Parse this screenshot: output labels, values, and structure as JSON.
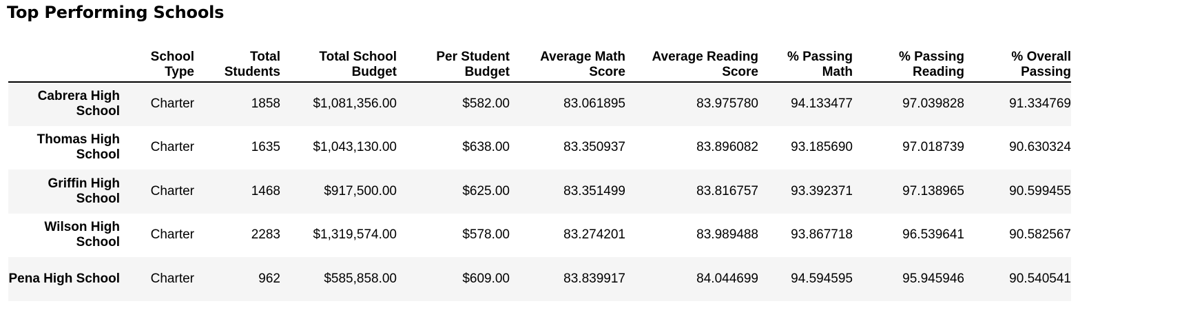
{
  "heading": "Top Performing Schools",
  "table": {
    "columns": [
      "",
      "School Type",
      "Total Students",
      "Total School Budget",
      "Per Student Budget",
      "Average Math Score",
      "Average Reading Score",
      "% Passing Math",
      "% Passing Reading",
      "% Overall Passing"
    ],
    "rows": [
      {
        "school": "Cabrera High School",
        "type": "Charter",
        "students": "1858",
        "budget": "$1,081,356.00",
        "per_student": "$582.00",
        "avg_math": "83.061895",
        "avg_reading": "83.975780",
        "pass_math": "94.133477",
        "pass_reading": "97.039828",
        "overall": "91.334769"
      },
      {
        "school": "Thomas High School",
        "type": "Charter",
        "students": "1635",
        "budget": "$1,043,130.00",
        "per_student": "$638.00",
        "avg_math": "83.350937",
        "avg_reading": "83.896082",
        "pass_math": "93.185690",
        "pass_reading": "97.018739",
        "overall": "90.630324"
      },
      {
        "school": "Griffin High School",
        "type": "Charter",
        "students": "1468",
        "budget": "$917,500.00",
        "per_student": "$625.00",
        "avg_math": "83.351499",
        "avg_reading": "83.816757",
        "pass_math": "93.392371",
        "pass_reading": "97.138965",
        "overall": "90.599455"
      },
      {
        "school": "Wilson High School",
        "type": "Charter",
        "students": "2283",
        "budget": "$1,319,574.00",
        "per_student": "$578.00",
        "avg_math": "83.274201",
        "avg_reading": "83.989488",
        "pass_math": "93.867718",
        "pass_reading": "96.539641",
        "overall": "90.582567"
      },
      {
        "school": "Pena High School",
        "type": "Charter",
        "students": "962",
        "budget": "$585,858.00",
        "per_student": "$609.00",
        "avg_math": "83.839917",
        "avg_reading": "84.044699",
        "pass_math": "94.594595",
        "pass_reading": "95.945946",
        "overall": "90.540541"
      }
    ]
  },
  "colors": {
    "shaded_row": "#f5f5f5",
    "header_rule": "#000000"
  }
}
